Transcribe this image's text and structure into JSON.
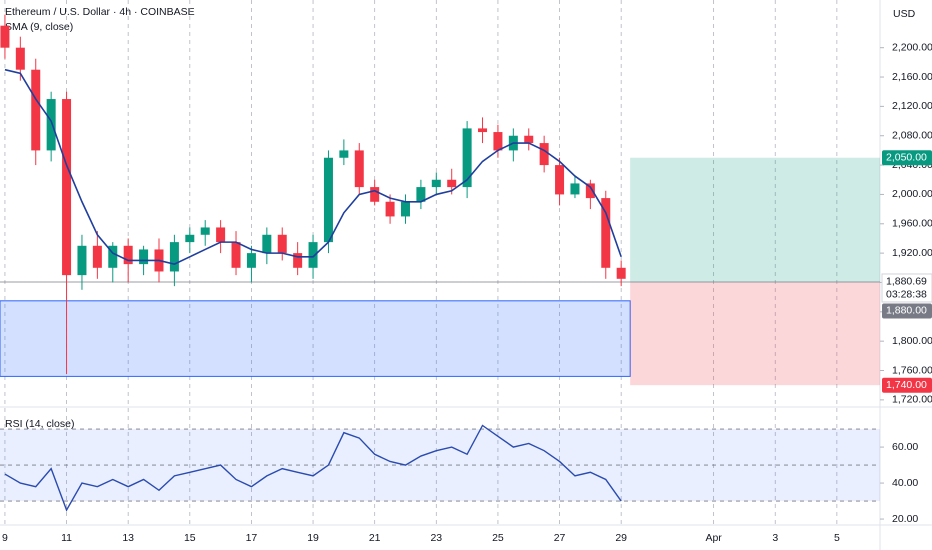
{
  "chart_data": [
    {
      "type": "candlestick",
      "title": "Ethereum / U.S. Dollar · 4h · COINBASE",
      "indicator": "SMA (9, close)",
      "currency": "USD",
      "xlim": [
        8.84,
        37.4
      ],
      "xticks": [
        9,
        11,
        13,
        15,
        17,
        19,
        21,
        23,
        25,
        27,
        29,
        {
          "value": 32,
          "label": "Apr"
        },
        {
          "value": 34,
          "label": "3"
        },
        {
          "value": 36,
          "label": "5"
        }
      ],
      "ylim": [
        1713,
        2265
      ],
      "yticks": [
        {
          "value": 1720,
          "label": "1,720.00"
        },
        {
          "value": 1760,
          "label": "1,760.00"
        },
        {
          "value": 1800,
          "label": "1,800.00"
        },
        {
          "value": 1840,
          "label": "1,840.00"
        },
        {
          "value": 1880,
          "label": "1,880.00"
        },
        {
          "value": 1920,
          "label": "1,920.00"
        },
        {
          "value": 1960,
          "label": "1,960.00"
        },
        {
          "value": 2000,
          "label": "2,000.00"
        },
        {
          "value": 2040,
          "label": "2,040.00"
        },
        {
          "value": 2080,
          "label": "2,080.00"
        },
        {
          "value": 2120,
          "label": "2,120.00"
        },
        {
          "value": 2160,
          "label": "2,160.00"
        },
        {
          "value": 2200,
          "label": "2,200.00"
        }
      ],
      "up_color": "#089981",
      "down_color": "#f23645",
      "x": [
        9,
        9.5,
        10,
        10.5,
        11,
        11.5,
        12,
        12.5,
        13,
        13.5,
        14,
        14.5,
        15,
        15.5,
        16,
        16.5,
        17,
        17.5,
        18,
        18.5,
        19,
        19.5,
        20,
        20.5,
        21,
        21.5,
        22,
        22.5,
        23,
        23.5,
        24,
        24.5,
        25,
        25.5,
        26,
        26.5,
        27,
        27.5,
        28,
        28.5,
        29
      ],
      "open": [
        2230,
        2200,
        2170,
        2060,
        2130,
        1890,
        1930,
        1900,
        1930,
        1905,
        1925,
        1895,
        1935,
        1945,
        1955,
        1935,
        1900,
        1920,
        1945,
        1920,
        1900,
        1935,
        2050,
        2060,
        2010,
        1990,
        1970,
        1990,
        2010,
        2020,
        2010,
        2090,
        2085,
        2060,
        2080,
        2070,
        2040,
        2000,
        2015,
        1995,
        1900
      ],
      "high": [
        2245,
        2215,
        2185,
        2140,
        2140,
        1945,
        1950,
        1935,
        1940,
        1930,
        1940,
        1945,
        1955,
        1965,
        1965,
        1950,
        1930,
        1955,
        1955,
        1935,
        1945,
        2060,
        2075,
        2070,
        2020,
        2000,
        2000,
        2020,
        2030,
        2035,
        2100,
        2105,
        2095,
        2090,
        2090,
        2080,
        2050,
        2025,
        2020,
        2005,
        1910
      ],
      "low": [
        2185,
        2155,
        2040,
        2045,
        1755,
        1870,
        1885,
        1880,
        1880,
        1890,
        1880,
        1875,
        1920,
        1930,
        1920,
        1890,
        1880,
        1905,
        1910,
        1890,
        1885,
        1920,
        2040,
        2000,
        1985,
        1960,
        1960,
        1980,
        2000,
        2000,
        1995,
        2070,
        2050,
        2045,
        2060,
        2030,
        1985,
        1995,
        1980,
        1885,
        1875
      ],
      "close": [
        2200,
        2170,
        2060,
        2130,
        1890,
        1930,
        1900,
        1930,
        1905,
        1925,
        1895,
        1935,
        1945,
        1955,
        1935,
        1900,
        1920,
        1945,
        1920,
        1900,
        1935,
        2050,
        2060,
        2010,
        1990,
        1970,
        1990,
        2010,
        2020,
        2010,
        2090,
        2085,
        2060,
        2080,
        2070,
        2040,
        2000,
        2015,
        1995,
        1900,
        1885
      ],
      "sma": {
        "color": "#1f3f9f",
        "values": [
          2170,
          2165,
          2130,
          2100,
          2040,
          1990,
          1945,
          1920,
          1910,
          1910,
          1910,
          1905,
          1915,
          1925,
          1935,
          1935,
          1925,
          1920,
          1920,
          1915,
          1915,
          1935,
          1975,
          2000,
          2005,
          1995,
          1990,
          1990,
          2000,
          2005,
          2020,
          2045,
          2060,
          2070,
          2070,
          2060,
          2045,
          2025,
          2010,
          1975,
          1915
        ]
      },
      "support_zone": [
        1752,
        1855
      ],
      "position": {
        "target": {
          "value": 2050,
          "label": "2,050.00"
        },
        "entry": {
          "value": 1880,
          "label": "1,880.00"
        },
        "stop": {
          "value": 1740,
          "label": "1,740.00"
        }
      },
      "last_price": {
        "value": 1880.69,
        "label": "1,880.69",
        "countdown": "03:28:38"
      }
    },
    {
      "type": "line",
      "title": "RSI (14, close)",
      "ylim": [
        16.7,
        80.6
      ],
      "yticks": [
        {
          "value": 20,
          "label": "20.00"
        },
        {
          "value": 40,
          "label": "40.00"
        },
        {
          "value": 60,
          "label": "60.00"
        }
      ],
      "levels": [
        30,
        50,
        70
      ],
      "color": "#2a4bb0",
      "values": [
        45,
        40,
        38,
        48,
        25,
        40,
        38,
        42,
        38,
        42,
        36,
        44,
        46,
        48,
        50,
        42,
        38,
        44,
        48,
        46,
        44,
        50,
        68,
        65,
        56,
        52,
        50,
        55,
        58,
        60,
        56,
        72,
        66,
        60,
        62,
        58,
        52,
        44,
        46,
        42,
        30
      ]
    }
  ]
}
